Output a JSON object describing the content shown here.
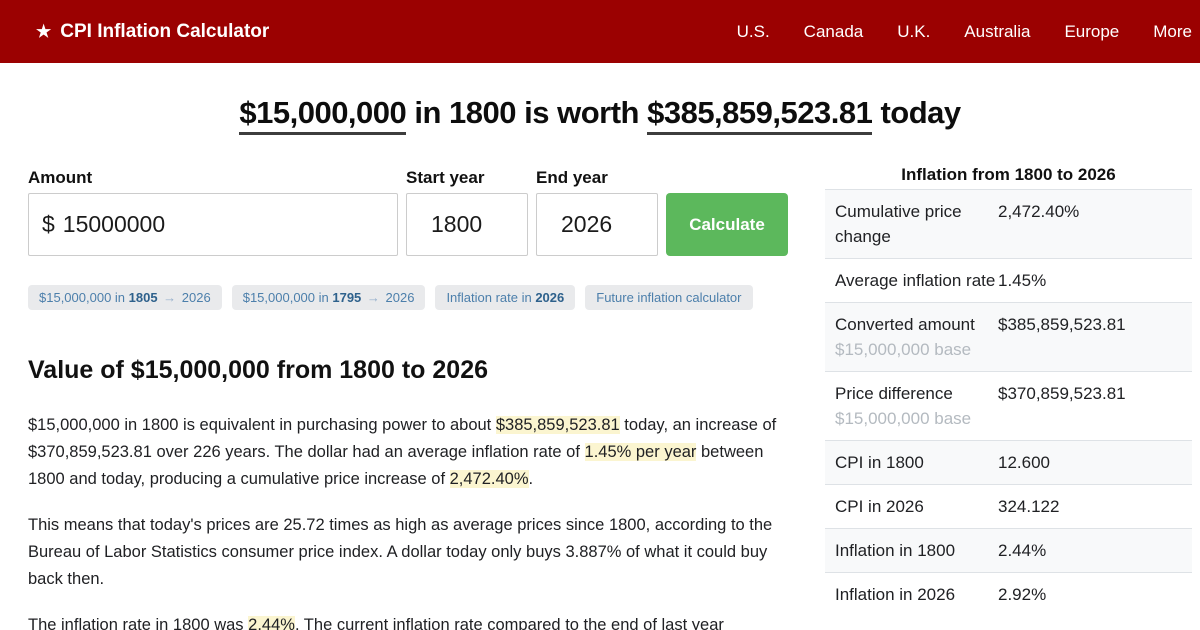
{
  "colors": {
    "brand_red": "#9b0101",
    "button_green": "#5cb85c",
    "highlight_yellow": "#fbf5d0",
    "link_blue": "#4c7fab"
  },
  "nav": {
    "brand": "CPI Inflation Calculator",
    "star_icon": "★",
    "items": [
      "U.S.",
      "Canada",
      "U.K.",
      "Australia",
      "Europe",
      "More"
    ]
  },
  "hero": {
    "title_segments": [
      {
        "t": "$15,000,000",
        "s": "u"
      },
      {
        "t": " in 1800 is worth "
      },
      {
        "t": "$385,859,523.81",
        "s": "u"
      },
      {
        "t": " today"
      }
    ]
  },
  "form": {
    "amount_label": "Amount",
    "currency_prefix": "$",
    "amount_value": "15000000",
    "start_year_label": "Start year",
    "start_year_value": "1800",
    "end_year_label": "End year",
    "end_year_value": "2026",
    "calculate_label": "Calculate"
  },
  "quick_links": [
    [
      {
        "t": "$15,000,000 in "
      },
      {
        "t": "1805",
        "s": "b"
      },
      {
        "t": " → ",
        "s": "arr"
      },
      {
        "t": "2026"
      }
    ],
    [
      {
        "t": "$15,000,000 in "
      },
      {
        "t": "1795",
        "s": "b"
      },
      {
        "t": " → ",
        "s": "arr"
      },
      {
        "t": "2026"
      }
    ],
    [
      {
        "t": "Inflation rate in "
      },
      {
        "t": "2026",
        "s": "b"
      }
    ],
    [
      {
        "t": "Future inflation calculator"
      }
    ]
  ],
  "article": {
    "heading": "Value of $15,000,000 from 1800 to 2026",
    "p1": [
      {
        "t": "$15,000,000 in 1800 is equivalent in purchasing power to about "
      },
      {
        "t": "$385,859,523.81",
        "s": "hl"
      },
      {
        "t": " today, an increase of $370,859,523.81 over 226 years. The dollar had an average inflation rate of "
      },
      {
        "t": "1.45% per year",
        "s": "hl"
      },
      {
        "t": " between 1800 and today, producing a cumulative price increase of "
      },
      {
        "t": "2,472.40%",
        "s": "hl"
      },
      {
        "t": "."
      }
    ],
    "p2": "This means that today's prices are 25.72 times as high as average prices since 1800, according to the Bureau of Labor Statistics consumer price index. A dollar today only buys 3.887% of what it could buy back then.",
    "p3": [
      {
        "t": "The inflation rate in 1800 was "
      },
      {
        "t": "2.44%",
        "s": "hl"
      },
      {
        "t": ". The current inflation rate compared to the end of last year"
      }
    ]
  },
  "summary": {
    "title": "Inflation from 1800 to 2026",
    "rows": [
      {
        "label": "Cumulative price change",
        "value": "2,472.40%"
      },
      {
        "label": "Average inflation rate",
        "value": "1.45%"
      },
      {
        "label": "Converted amount",
        "sub": "$15,000,000 base",
        "value": "$385,859,523.81"
      },
      {
        "label": "Price difference",
        "sub": "$15,000,000 base",
        "value": "$370,859,523.81"
      },
      {
        "label": "CPI in 1800",
        "value": "12.600"
      },
      {
        "label": "CPI in 2026",
        "value": "324.122"
      },
      {
        "label": "Inflation in 1800",
        "value": "2.44%"
      },
      {
        "label": "Inflation in 2026",
        "value": "2.92%"
      }
    ]
  }
}
